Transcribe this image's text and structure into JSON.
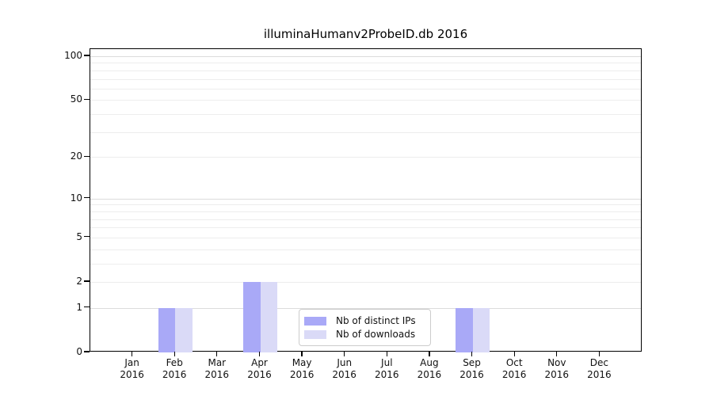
{
  "chart_data": {
    "type": "bar",
    "title": "illuminaHumanv2ProbeID.db 2016",
    "year": "2016",
    "months": [
      "Jan",
      "Feb",
      "Mar",
      "Apr",
      "May",
      "Jun",
      "Jul",
      "Aug",
      "Sep",
      "Oct",
      "Nov",
      "Dec"
    ],
    "series": [
      {
        "name": "Nb of distinct IPs",
        "color": "#a9a9f7",
        "values": [
          0,
          1,
          0,
          2,
          0,
          0,
          0,
          0,
          1,
          0,
          0,
          0
        ]
      },
      {
        "name": "Nb of downloads",
        "color": "#dadaf7",
        "values": [
          0,
          1,
          0,
          2,
          0,
          0,
          0,
          0,
          1,
          0,
          0,
          0
        ]
      }
    ],
    "y_axis": {
      "ticks": [
        0,
        1,
        2,
        5,
        10,
        20,
        50,
        100
      ],
      "scale": "log10(1+v)",
      "top_value": 112
    },
    "x_axis": {
      "tick_count": 12
    },
    "grid": {
      "on": true,
      "minor_color": "#ededed",
      "major_color": "#dcdcdc",
      "values": [
        1,
        2,
        3,
        4,
        5,
        6,
        7,
        8,
        9,
        10,
        20,
        30,
        40,
        50,
        60,
        70,
        80,
        90,
        100
      ],
      "major_values": [
        1,
        10,
        100
      ]
    },
    "legend": {
      "position": "bottom-center",
      "border_color": "#cccccc"
    },
    "frame_color": "#000000",
    "background": "#ffffff"
  }
}
